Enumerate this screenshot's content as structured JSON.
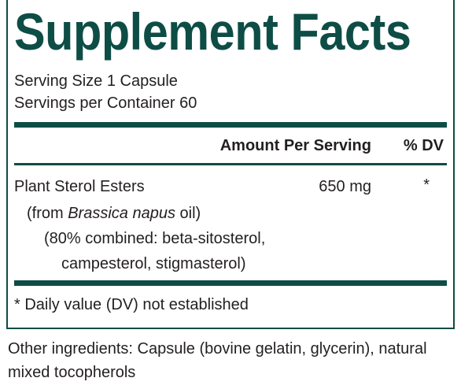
{
  "title": "Supplement Facts",
  "serving": {
    "size": "Serving Size 1 Capsule",
    "per_container": "Servings per Container 60"
  },
  "header": {
    "amount": "Amount Per Serving",
    "dv": "% DV"
  },
  "rows": [
    {
      "name": "Plant Sterol Esters",
      "amount": "650 mg",
      "dv": "*",
      "source": {
        "prefix": "(from ",
        "italic": "Brassica napus",
        "suffix": " oil)"
      },
      "detail": [
        "(80% combined: beta-sitosterol,",
        "campesterol, stigmasterol)"
      ]
    }
  ],
  "footnote": "* Daily value (DV) not established",
  "other_ingredients": "Other ingredients: Capsule (bovine gelatin, glycerin), natural mixed tocopherols"
}
